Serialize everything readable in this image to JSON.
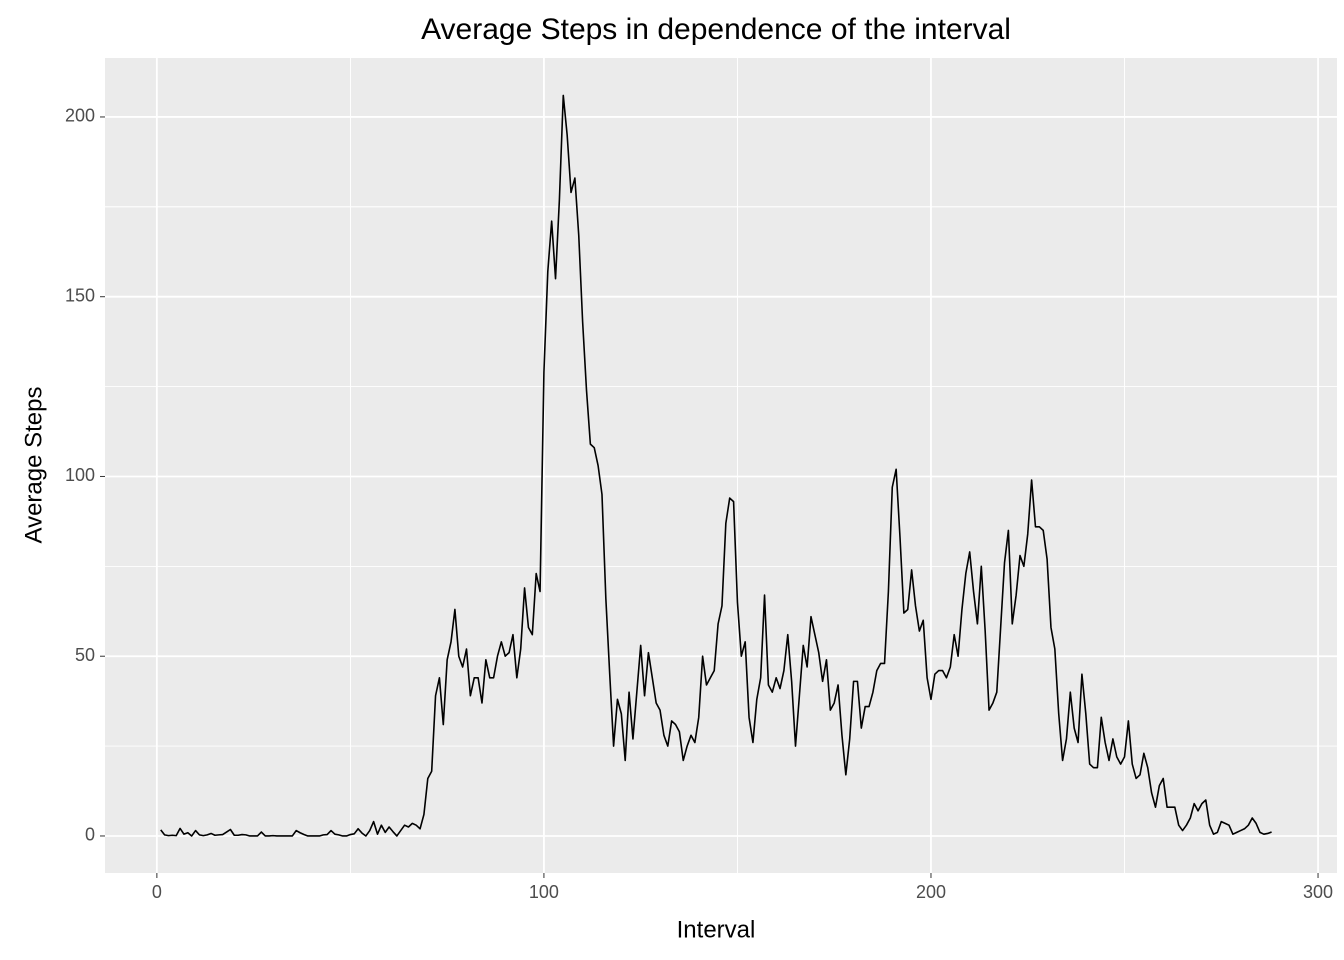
{
  "chart_data": {
    "type": "line",
    "title": "Average Steps in dependence of the interval",
    "x_label": "Interval",
    "y_label": "Average Steps",
    "x": [
      1,
      2,
      3,
      4,
      5,
      6,
      7,
      8,
      9,
      10,
      11,
      12,
      13,
      14,
      15,
      16,
      17,
      18,
      19,
      20,
      21,
      22,
      23,
      24,
      25,
      26,
      27,
      28,
      29,
      30,
      31,
      32,
      33,
      34,
      35,
      36,
      37,
      38,
      39,
      40,
      41,
      42,
      43,
      44,
      45,
      46,
      47,
      48,
      49,
      50,
      51,
      52,
      53,
      54,
      55,
      56,
      57,
      58,
      59,
      60,
      61,
      62,
      63,
      64,
      65,
      66,
      67,
      68,
      69,
      70,
      71,
      72,
      73,
      74,
      75,
      76,
      77,
      78,
      79,
      80,
      81,
      82,
      83,
      84,
      85,
      86,
      87,
      88,
      89,
      90,
      91,
      92,
      93,
      94,
      95,
      96,
      97,
      98,
      99,
      100,
      101,
      102,
      103,
      104,
      105,
      106,
      107,
      108,
      109,
      110,
      111,
      112,
      113,
      114,
      115,
      116,
      117,
      118,
      119,
      120,
      121,
      122,
      123,
      124,
      125,
      126,
      127,
      128,
      129,
      130,
      131,
      132,
      133,
      134,
      135,
      136,
      137,
      138,
      139,
      140,
      141,
      142,
      143,
      144,
      145,
      146,
      147,
      148,
      149,
      150,
      151,
      152,
      153,
      154,
      155,
      156,
      157,
      158,
      159,
      160,
      161,
      162,
      163,
      164,
      165,
      166,
      167,
      168,
      169,
      170,
      171,
      172,
      173,
      174,
      175,
      176,
      177,
      178,
      179,
      180,
      181,
      182,
      183,
      184,
      185,
      186,
      187,
      188,
      189,
      190,
      191,
      192,
      193,
      194,
      195,
      196,
      197,
      198,
      199,
      200,
      201,
      202,
      203,
      204,
      205,
      206,
      207,
      208,
      209,
      210,
      211,
      212,
      213,
      214,
      215,
      216,
      217,
      218,
      219,
      220,
      221,
      222,
      223,
      224,
      225,
      226,
      227,
      228,
      229,
      230,
      231,
      232,
      233,
      234,
      235,
      236,
      237,
      238,
      239,
      240,
      241,
      242,
      243,
      244,
      245,
      246,
      247,
      248,
      249,
      250,
      251,
      252,
      253,
      254,
      255,
      256,
      257,
      258,
      259,
      260,
      261,
      262,
      263,
      264,
      265,
      266,
      267,
      268,
      269,
      270,
      271,
      272,
      273,
      274,
      275,
      276,
      277,
      278,
      279,
      280,
      281,
      282,
      283,
      284,
      285,
      286,
      287,
      288
    ],
    "series": [
      {
        "name": "Average Steps",
        "color": "#000000",
        "values": [
          1.7,
          0.3,
          0.1,
          0.2,
          0.1,
          2.1,
          0.5,
          0.9,
          0,
          1.5,
          0.3,
          0.1,
          0.3,
          0.7,
          0.2,
          0.3,
          0.4,
          1.1,
          1.8,
          0.2,
          0.2,
          0.4,
          0.3,
          0,
          0,
          0,
          1.1,
          0,
          0,
          0.1,
          0,
          0,
          0,
          0,
          0,
          1.5,
          0.9,
          0.4,
          0,
          0,
          0,
          0,
          0.3,
          0.4,
          1.5,
          0.5,
          0.3,
          0,
          0,
          0.4,
          0.6,
          2.0,
          0.8,
          0,
          1.5,
          4.0,
          0.5,
          3.0,
          1.0,
          2.5,
          1.2,
          0,
          1.5,
          3.0,
          2.5,
          3.5,
          3.0,
          2.0,
          6.0,
          16,
          18,
          39,
          44,
          31,
          49,
          54,
          63,
          50,
          47,
          52,
          39,
          44,
          44,
          37,
          49,
          44,
          44,
          50,
          54,
          50,
          51,
          56,
          44,
          52,
          69,
          58,
          56,
          73,
          68,
          129,
          157,
          171,
          155,
          177,
          206,
          195,
          179,
          183,
          167,
          143,
          124,
          109,
          108,
          103,
          95,
          66,
          45,
          25,
          38,
          34,
          21,
          40,
          27,
          40,
          53,
          39,
          51,
          44,
          37,
          35,
          28,
          25,
          32,
          31,
          29,
          21,
          25,
          28,
          26,
          33,
          50,
          42,
          44,
          46,
          59,
          64,
          87,
          94,
          93,
          65,
          50,
          54,
          33,
          26,
          38,
          44,
          67,
          42,
          40,
          44,
          41,
          46,
          56,
          43,
          25,
          39,
          53,
          47,
          61,
          56,
          51,
          43,
          49,
          35,
          37,
          42,
          28,
          17,
          27,
          43,
          43,
          30,
          36,
          36,
          40,
          46,
          48,
          48,
          68,
          97,
          102,
          83,
          62,
          63,
          74,
          64,
          57,
          60,
          44,
          38,
          45,
          46,
          46,
          44,
          47,
          56,
          50,
          63,
          73,
          79,
          68,
          59,
          75,
          57,
          35,
          37,
          40,
          58,
          76,
          85,
          59,
          67,
          78,
          75,
          84,
          99,
          86,
          86,
          85,
          77,
          58,
          52,
          34,
          21,
          27,
          40,
          30,
          26,
          45,
          34,
          20,
          19,
          19,
          33,
          26,
          21,
          27,
          22,
          20,
          22,
          32,
          20,
          16,
          17,
          23,
          19,
          12,
          8,
          14,
          16,
          8,
          8,
          8,
          3,
          1.5,
          3,
          5,
          9,
          7,
          9,
          10,
          3,
          0.5,
          1,
          4,
          3.5,
          3,
          0.5,
          1,
          1.5,
          2,
          3,
          5,
          3.5,
          1,
          0.5,
          0.7,
          1.1
        ]
      }
    ],
    "xlim": [
      -13.4,
      304.9
    ],
    "ylim": [
      -10.3,
      216.4
    ],
    "xticks": [
      0,
      100,
      200,
      300
    ],
    "yticks": [
      0,
      50,
      100,
      150,
      200
    ],
    "grid": true
  }
}
